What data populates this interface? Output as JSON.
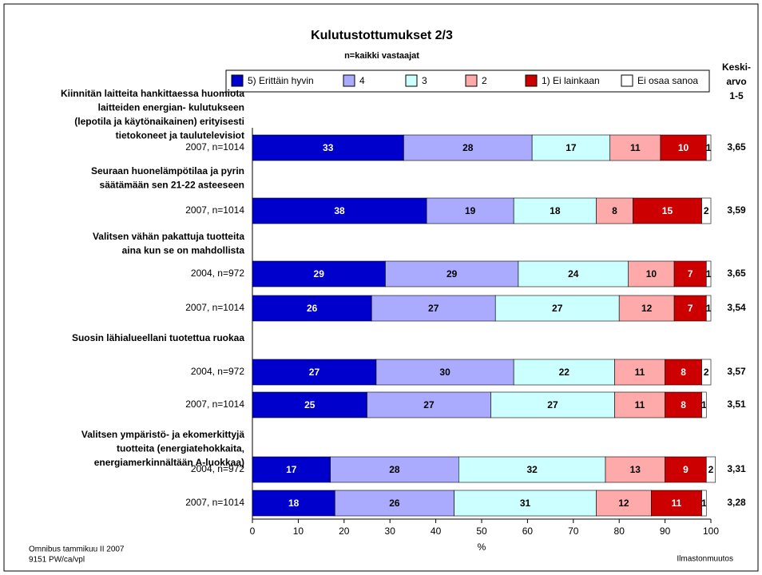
{
  "chart_data": {
    "type": "bar",
    "orientation": "horizontal",
    "stacked": true,
    "title": "Kulutustottumukset  2/3",
    "subtitle": "n=kaikki vastaajat",
    "x_label": "%",
    "mean_header": [
      "Keski-",
      "arvo",
      "1-5"
    ],
    "groups": [
      {
        "question": [
          "Kiinnitän laitteita hankittaessa huomiota",
          "laitteiden energian- kulutukseen",
          "(lepotila ja käytönaikainen) erityisesti",
          "tietokoneet ja taulutelevisiot"
        ]
      },
      {
        "question": [
          "Seuraan huonelämpötilaa ja pyrin",
          "säätämään sen 21-22 asteeseen"
        ]
      },
      {
        "question": [
          "Valitsen vähän pakattuja tuotteita",
          "aina kun se on mahdollista"
        ]
      },
      {
        "question": [
          "Suosin lähialueellani tuotettua ruokaa"
        ]
      },
      {
        "question": [
          "Valitsen ympäristö- ja ekomerkittyjä",
          "tuotteita (energiatehokkaita,",
          "energiamerkinnältään A-luokkaa)"
        ]
      }
    ],
    "categories": [
      "2007, n=1014",
      "2007, n=1014",
      "2004, n=972",
      "2007, n=1014",
      "2004, n=972",
      "2007, n=1014",
      "2004, n=972",
      "2007, n=1014"
    ],
    "series": [
      {
        "name": "5) Erittäin hyvin",
        "color": "#0000cc",
        "label_color": "#ffffff",
        "values": [
          33,
          38,
          29,
          26,
          27,
          25,
          17,
          18
        ]
      },
      {
        "name": "4",
        "color": "#aaaaff",
        "label_color": "#000000",
        "values": [
          28,
          19,
          29,
          27,
          30,
          27,
          28,
          26
        ]
      },
      {
        "name": "3",
        "color": "#ccffff",
        "label_color": "#000000",
        "values": [
          17,
          18,
          24,
          27,
          22,
          27,
          32,
          31
        ]
      },
      {
        "name": "2",
        "color": "#ffaaaa",
        "label_color": "#000000",
        "values": [
          11,
          8,
          10,
          12,
          11,
          11,
          13,
          12
        ]
      },
      {
        "name": "1) Ei lainkaan",
        "color": "#cc0000",
        "label_color": "#ffffff",
        "values": [
          10,
          15,
          7,
          7,
          8,
          8,
          9,
          11
        ]
      },
      {
        "name": "Ei osaa sanoa",
        "color": "#ffffff",
        "label_color": "#000000",
        "values": [
          1,
          2,
          1,
          1,
          2,
          1,
          2,
          1
        ]
      }
    ],
    "means": [
      {
        "value": 3.65,
        "label": "3,65"
      },
      {
        "value": 3.59,
        "label": "3,59"
      },
      {
        "value": 3.65,
        "label": "3,65"
      },
      {
        "value": 3.54,
        "label": "3,54"
      },
      {
        "value": 3.57,
        "label": "3,57"
      },
      {
        "value": 3.51,
        "label": "3,51"
      },
      {
        "value": 3.31,
        "label": "3,31"
      },
      {
        "value": 3.28,
        "label": "3,28"
      }
    ],
    "xlim": [
      0,
      100
    ],
    "xticks": [
      0,
      10,
      20,
      30,
      40,
      50,
      60,
      70,
      80,
      90,
      100
    ],
    "footer_left": [
      "Omnibus tammikuu II 2007",
      "9151 PW/ca/vpl"
    ],
    "footer_right": "Ilmastonmuutos"
  }
}
